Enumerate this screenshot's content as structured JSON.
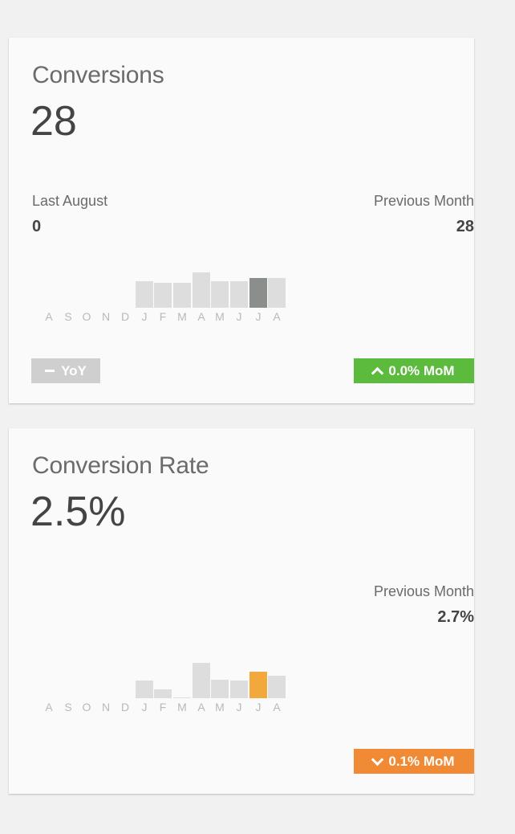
{
  "cards": [
    {
      "title": "Conversions",
      "value": "28",
      "left_label": "Last August",
      "left_value": "0",
      "right_label": "Previous Month",
      "right_value": "28",
      "months": [
        "A",
        "S",
        "O",
        "N",
        "D",
        "J",
        "F",
        "M",
        "A",
        "M",
        "J",
        "J",
        "A"
      ],
      "bar_values": [
        0,
        0,
        0,
        0,
        0,
        15,
        14,
        14,
        20,
        15,
        15,
        17,
        17
      ],
      "highlight_index": 11,
      "highlight_color": "#8a8f8c",
      "bar_color": "#dddddd",
      "yoy_badge": {
        "label": "YoY",
        "icon": "dash-icon",
        "color": "#cfcfcf"
      },
      "mom_badge": {
        "label": "0.0% MoM",
        "icon": "chevron-up-icon",
        "color": "#5cba3c"
      }
    },
    {
      "title": "Conversion Rate",
      "value": "2.5%",
      "right_label": "Previous Month",
      "right_value": "2.7%",
      "months": [
        "A",
        "S",
        "O",
        "N",
        "D",
        "J",
        "F",
        "M",
        "A",
        "M",
        "J",
        "J",
        "A"
      ],
      "bar_values": [
        0,
        0,
        0,
        0,
        0,
        20,
        10,
        1,
        40,
        21,
        20,
        30,
        25
      ],
      "highlight_index": 11,
      "highlight_color": "#f2a83a",
      "bar_color": "#dddddd",
      "mom_badge": {
        "label": "0.1% MoM",
        "icon": "chevron-down-icon",
        "color": "#f08a34"
      }
    }
  ]
}
